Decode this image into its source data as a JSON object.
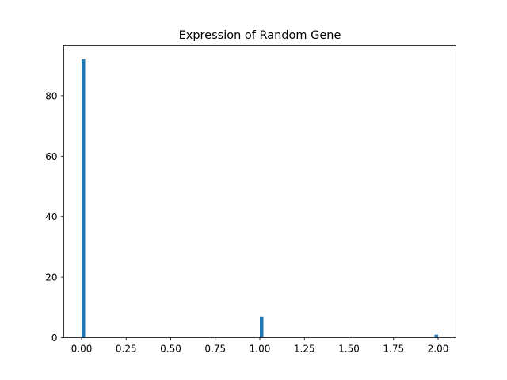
{
  "chart_data": {
    "type": "bar",
    "title": "Expression of Random Gene",
    "xlabel": "",
    "ylabel": "",
    "xlim": [
      -0.1,
      2.1
    ],
    "ylim": [
      0,
      96.6
    ],
    "grid": false,
    "bar_color": "#1f77b4",
    "bin_width": 0.02,
    "bars": [
      {
        "x": 0.0,
        "value": 92
      },
      {
        "x": 1.0,
        "value": 7
      },
      {
        "x": 1.98,
        "value": 1
      }
    ],
    "x_ticks": [
      {
        "value": 0.0,
        "label": "0.00"
      },
      {
        "value": 0.25,
        "label": "0.25"
      },
      {
        "value": 0.5,
        "label": "0.50"
      },
      {
        "value": 0.75,
        "label": "0.75"
      },
      {
        "value": 1.0,
        "label": "1.00"
      },
      {
        "value": 1.25,
        "label": "1.25"
      },
      {
        "value": 1.5,
        "label": "1.50"
      },
      {
        "value": 1.75,
        "label": "1.75"
      },
      {
        "value": 2.0,
        "label": "2.00"
      }
    ],
    "y_ticks": [
      {
        "value": 0,
        "label": "0"
      },
      {
        "value": 20,
        "label": "20"
      },
      {
        "value": 40,
        "label": "40"
      },
      {
        "value": 60,
        "label": "60"
      },
      {
        "value": 80,
        "label": "80"
      }
    ]
  }
}
